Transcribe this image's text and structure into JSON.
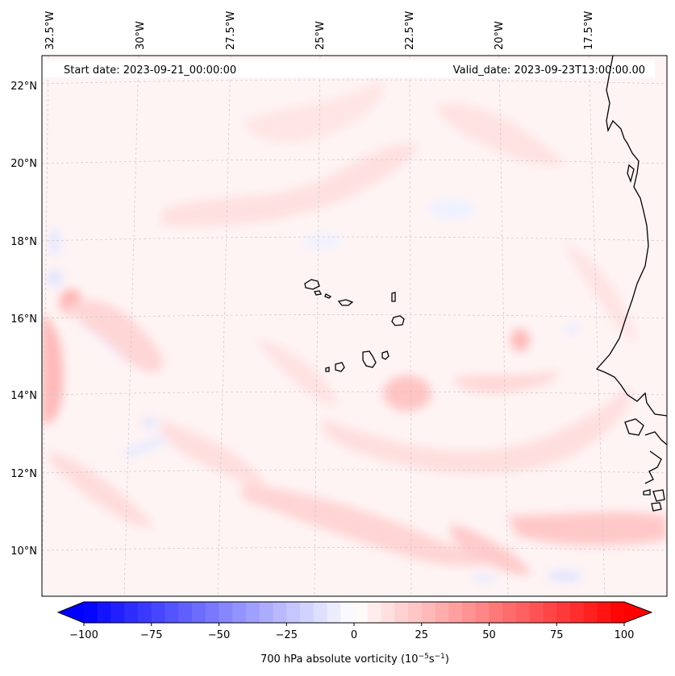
{
  "header": {
    "start_date": "Start date: 2023-09-21_00:00:00",
    "valid_date": "Valid_date: 2023-09-23T13:00:00.00"
  },
  "axes": {
    "lon_labels": [
      "32.5°W",
      "30°W",
      "27.5°W",
      "25°W",
      "22.5°W",
      "20°W",
      "17.5°W"
    ],
    "lat_labels": [
      "22°N",
      "20°N",
      "18°N",
      "16°N",
      "14°N",
      "12°N",
      "10°N"
    ]
  },
  "colorbar": {
    "label_main": "700 hPa absolute vorticity (10",
    "label_exp1": "−5",
    "label_mid": "s",
    "label_exp2": "−1",
    "label_end": ")",
    "ticks": [
      "−100",
      "−75",
      "−50",
      "−25",
      "0",
      "25",
      "50",
      "75",
      "100"
    ],
    "min_color": "#0000ff",
    "max_color": "#ff0000",
    "neutral_color": "#ffffff"
  },
  "map_colors": {
    "background": "#fff4f4",
    "positive_light": "#ffe2e2",
    "positive_mid": "#ffcfcf",
    "negative_light": "#ecefff",
    "coastline": "#000000",
    "gridline": "#c8c8c8"
  }
}
